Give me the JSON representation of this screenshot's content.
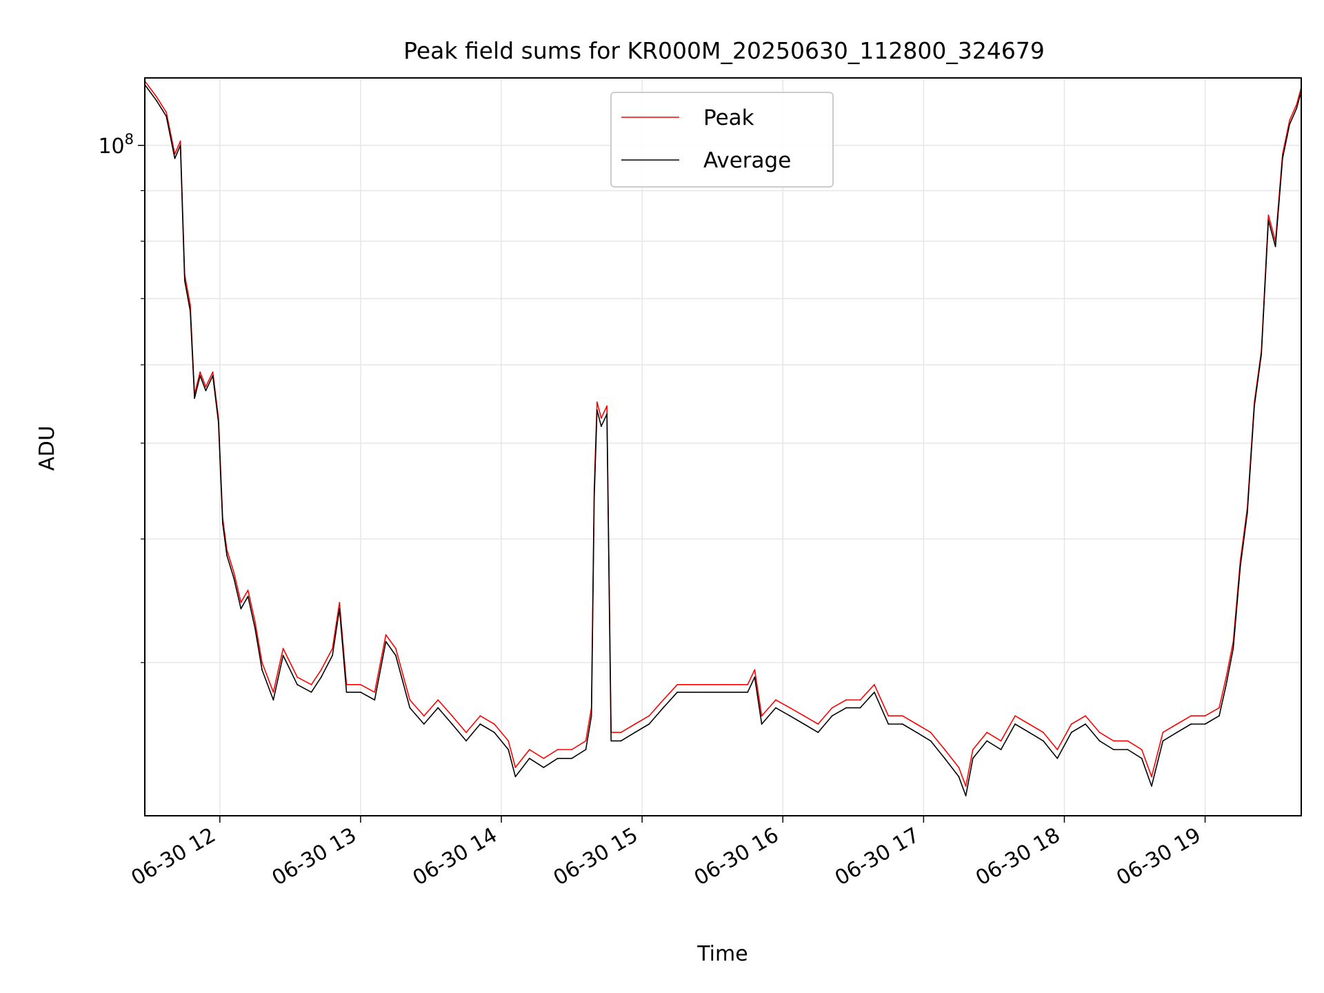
{
  "chart_data": {
    "type": "line",
    "title": "Peak field sums for KR000M_20250630_112800_324679",
    "xlabel": "Time",
    "ylabel": "ADU",
    "x_axis": {
      "unit": "hours of day (2025-06-30)",
      "range": [
        11.467,
        19.683
      ],
      "ticks": [
        {
          "value": 12,
          "label": "06-30 12"
        },
        {
          "value": 13,
          "label": "06-30 13"
        },
        {
          "value": 14,
          "label": "06-30 14"
        },
        {
          "value": 15,
          "label": "06-30 15"
        },
        {
          "value": 16,
          "label": "06-30 16"
        },
        {
          "value": 17,
          "label": "06-30 17"
        },
        {
          "value": 18,
          "label": "06-30 18"
        },
        {
          "value": 19,
          "label": "06-30 19"
        }
      ]
    },
    "y_axis": {
      "scale": "log",
      "range": [
        21000000,
        117000000
      ],
      "major_ticks": [
        {
          "value": 100000000,
          "label_base": "10",
          "label_exp": "8"
        }
      ],
      "minor_ticks": [
        30000000,
        40000000,
        50000000,
        60000000,
        70000000,
        80000000,
        90000000
      ]
    },
    "grid": true,
    "legend": {
      "placement": "top-center",
      "entries": [
        "Peak",
        "Average"
      ]
    },
    "series": [
      {
        "name": "Peak",
        "color": "#ff0000",
        "points": [
          [
            11.47,
            116000000
          ],
          [
            11.55,
            112000000
          ],
          [
            11.62,
            108000000
          ],
          [
            11.68,
            98000000
          ],
          [
            11.72,
            101000000
          ],
          [
            11.75,
            74000000
          ],
          [
            11.79,
            69000000
          ],
          [
            11.82,
            56000000
          ],
          [
            11.86,
            59000000
          ],
          [
            11.9,
            57000000
          ],
          [
            11.95,
            59000000
          ],
          [
            11.99,
            53000000
          ],
          [
            12.02,
            42000000
          ],
          [
            12.05,
            39000000
          ],
          [
            12.1,
            37000000
          ],
          [
            12.15,
            34500000
          ],
          [
            12.2,
            35500000
          ],
          [
            12.25,
            33000000
          ],
          [
            12.3,
            30000000
          ],
          [
            12.38,
            28000000
          ],
          [
            12.45,
            31000000
          ],
          [
            12.55,
            29000000
          ],
          [
            12.65,
            28500000
          ],
          [
            12.72,
            29500000
          ],
          [
            12.8,
            31000000
          ],
          [
            12.85,
            34500000
          ],
          [
            12.9,
            28500000
          ],
          [
            13.0,
            28500000
          ],
          [
            13.1,
            28000000
          ],
          [
            13.18,
            32000000
          ],
          [
            13.25,
            31000000
          ],
          [
            13.35,
            27500000
          ],
          [
            13.45,
            26500000
          ],
          [
            13.55,
            27500000
          ],
          [
            13.65,
            26500000
          ],
          [
            13.75,
            25500000
          ],
          [
            13.85,
            26500000
          ],
          [
            13.95,
            26000000
          ],
          [
            14.05,
            25000000
          ],
          [
            14.1,
            23500000
          ],
          [
            14.2,
            24500000
          ],
          [
            14.3,
            24000000
          ],
          [
            14.4,
            24500000
          ],
          [
            14.5,
            24500000
          ],
          [
            14.6,
            25000000
          ],
          [
            14.64,
            27000000
          ],
          [
            14.66,
            45000000
          ],
          [
            14.68,
            55000000
          ],
          [
            14.71,
            53000000
          ],
          [
            14.75,
            54500000
          ],
          [
            14.78,
            25500000
          ],
          [
            14.85,
            25500000
          ],
          [
            14.95,
            26000000
          ],
          [
            15.05,
            26500000
          ],
          [
            15.15,
            27500000
          ],
          [
            15.25,
            28500000
          ],
          [
            15.35,
            28500000
          ],
          [
            15.45,
            28500000
          ],
          [
            15.55,
            28500000
          ],
          [
            15.65,
            28500000
          ],
          [
            15.75,
            28500000
          ],
          [
            15.8,
            29500000
          ],
          [
            15.85,
            26500000
          ],
          [
            15.95,
            27500000
          ],
          [
            16.05,
            27000000
          ],
          [
            16.15,
            26500000
          ],
          [
            16.25,
            26000000
          ],
          [
            16.35,
            27000000
          ],
          [
            16.45,
            27500000
          ],
          [
            16.55,
            27500000
          ],
          [
            16.65,
            28500000
          ],
          [
            16.75,
            26500000
          ],
          [
            16.85,
            26500000
          ],
          [
            16.95,
            26000000
          ],
          [
            17.05,
            25500000
          ],
          [
            17.15,
            24500000
          ],
          [
            17.25,
            23500000
          ],
          [
            17.3,
            22500000
          ],
          [
            17.35,
            24500000
          ],
          [
            17.45,
            25500000
          ],
          [
            17.55,
            25000000
          ],
          [
            17.65,
            26500000
          ],
          [
            17.75,
            26000000
          ],
          [
            17.85,
            25500000
          ],
          [
            17.95,
            24500000
          ],
          [
            18.05,
            26000000
          ],
          [
            18.15,
            26500000
          ],
          [
            18.25,
            25500000
          ],
          [
            18.35,
            25000000
          ],
          [
            18.45,
            25000000
          ],
          [
            18.55,
            24500000
          ],
          [
            18.62,
            23000000
          ],
          [
            18.7,
            25500000
          ],
          [
            18.8,
            26000000
          ],
          [
            18.9,
            26500000
          ],
          [
            19.0,
            26500000
          ],
          [
            19.1,
            27000000
          ],
          [
            19.15,
            29000000
          ],
          [
            19.2,
            31500000
          ],
          [
            19.25,
            38000000
          ],
          [
            19.3,
            43000000
          ],
          [
            19.35,
            55000000
          ],
          [
            19.4,
            62000000
          ],
          [
            19.45,
            85000000
          ],
          [
            19.5,
            80000000
          ],
          [
            19.55,
            98000000
          ],
          [
            19.6,
            106000000
          ],
          [
            19.65,
            110000000
          ],
          [
            19.68,
            114000000
          ]
        ]
      },
      {
        "name": "Average",
        "color": "#000000",
        "points": [
          [
            11.47,
            115000000
          ],
          [
            11.55,
            111000000
          ],
          [
            11.62,
            107000000
          ],
          [
            11.68,
            97000000
          ],
          [
            11.72,
            100000000
          ],
          [
            11.75,
            73000000
          ],
          [
            11.79,
            68000000
          ],
          [
            11.82,
            55500000
          ],
          [
            11.86,
            58500000
          ],
          [
            11.9,
            56500000
          ],
          [
            11.95,
            58500000
          ],
          [
            11.99,
            52500000
          ],
          [
            12.02,
            41500000
          ],
          [
            12.05,
            38500000
          ],
          [
            12.1,
            36500000
          ],
          [
            12.15,
            34000000
          ],
          [
            12.2,
            35000000
          ],
          [
            12.25,
            32500000
          ],
          [
            12.3,
            29500000
          ],
          [
            12.38,
            27500000
          ],
          [
            12.45,
            30500000
          ],
          [
            12.55,
            28500000
          ],
          [
            12.65,
            28000000
          ],
          [
            12.72,
            29000000
          ],
          [
            12.8,
            30500000
          ],
          [
            12.85,
            34000000
          ],
          [
            12.9,
            28000000
          ],
          [
            13.0,
            28000000
          ],
          [
            13.1,
            27500000
          ],
          [
            13.18,
            31500000
          ],
          [
            13.25,
            30500000
          ],
          [
            13.35,
            27000000
          ],
          [
            13.45,
            26000000
          ],
          [
            13.55,
            27000000
          ],
          [
            13.65,
            26000000
          ],
          [
            13.75,
            25000000
          ],
          [
            13.85,
            26000000
          ],
          [
            13.95,
            25500000
          ],
          [
            14.05,
            24500000
          ],
          [
            14.1,
            23000000
          ],
          [
            14.2,
            24000000
          ],
          [
            14.3,
            23500000
          ],
          [
            14.4,
            24000000
          ],
          [
            14.5,
            24000000
          ],
          [
            14.6,
            24500000
          ],
          [
            14.64,
            26500000
          ],
          [
            14.66,
            44000000
          ],
          [
            14.68,
            54000000
          ],
          [
            14.71,
            52000000
          ],
          [
            14.75,
            53500000
          ],
          [
            14.78,
            25000000
          ],
          [
            14.85,
            25000000
          ],
          [
            14.95,
            25500000
          ],
          [
            15.05,
            26000000
          ],
          [
            15.15,
            27000000
          ],
          [
            15.25,
            28000000
          ],
          [
            15.35,
            28000000
          ],
          [
            15.45,
            28000000
          ],
          [
            15.55,
            28000000
          ],
          [
            15.65,
            28000000
          ],
          [
            15.75,
            28000000
          ],
          [
            15.8,
            29000000
          ],
          [
            15.85,
            26000000
          ],
          [
            15.95,
            27000000
          ],
          [
            16.05,
            26500000
          ],
          [
            16.15,
            26000000
          ],
          [
            16.25,
            25500000
          ],
          [
            16.35,
            26500000
          ],
          [
            16.45,
            27000000
          ],
          [
            16.55,
            27000000
          ],
          [
            16.65,
            28000000
          ],
          [
            16.75,
            26000000
          ],
          [
            16.85,
            26000000
          ],
          [
            16.95,
            25500000
          ],
          [
            17.05,
            25000000
          ],
          [
            17.15,
            24000000
          ],
          [
            17.25,
            23000000
          ],
          [
            17.3,
            22000000
          ],
          [
            17.35,
            24000000
          ],
          [
            17.45,
            25000000
          ],
          [
            17.55,
            24500000
          ],
          [
            17.65,
            26000000
          ],
          [
            17.75,
            25500000
          ],
          [
            17.85,
            25000000
          ],
          [
            17.95,
            24000000
          ],
          [
            18.05,
            25500000
          ],
          [
            18.15,
            26000000
          ],
          [
            18.25,
            25000000
          ],
          [
            18.35,
            24500000
          ],
          [
            18.45,
            24500000
          ],
          [
            18.55,
            24000000
          ],
          [
            18.62,
            22500000
          ],
          [
            18.7,
            25000000
          ],
          [
            18.8,
            25500000
          ],
          [
            18.9,
            26000000
          ],
          [
            19.0,
            26000000
          ],
          [
            19.1,
            26500000
          ],
          [
            19.15,
            28500000
          ],
          [
            19.2,
            31000000
          ],
          [
            19.25,
            37500000
          ],
          [
            19.3,
            42500000
          ],
          [
            19.35,
            54500000
          ],
          [
            19.4,
            61500000
          ],
          [
            19.45,
            84000000
          ],
          [
            19.5,
            79000000
          ],
          [
            19.55,
            97000000
          ],
          [
            19.6,
            105000000
          ],
          [
            19.65,
            109000000
          ],
          [
            19.68,
            113000000
          ]
        ]
      }
    ]
  }
}
